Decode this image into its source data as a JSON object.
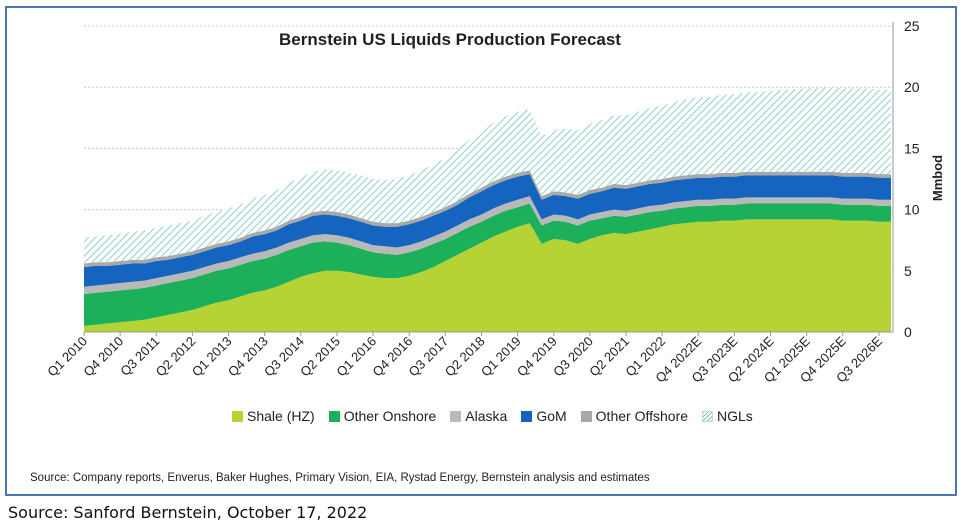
{
  "chart_data": {
    "type": "area",
    "title": "Bernstein US Liquids Production Forecast",
    "ylabel": "Mmbod",
    "xlabel": "",
    "ylim": [
      0,
      25
    ],
    "yticks": [
      0,
      5,
      10,
      15,
      20,
      25
    ],
    "stacked": true,
    "grid": "horizontal dashed",
    "legend_position": "bottom",
    "x_tick_labels": [
      "Q1 2010",
      "Q4 2010",
      "Q3 2011",
      "Q2 2012",
      "Q1 2013",
      "Q4 2013",
      "Q3 2014",
      "Q2 2015",
      "Q1 2016",
      "Q4 2016",
      "Q3 2017",
      "Q2 2018",
      "Q1 2019",
      "Q4 2019",
      "Q3 2020",
      "Q2 2021",
      "Q1 2022",
      "Q4 2022E",
      "Q3 2023E",
      "Q2 2024E",
      "Q1 2025E",
      "Q4 2025E",
      "Q3 2026E"
    ],
    "x_points": 68,
    "series": [
      {
        "name": "Shale (HZ)",
        "color": "#b5d334",
        "values": [
          0.5,
          0.6,
          0.7,
          0.8,
          0.9,
          1.0,
          1.2,
          1.4,
          1.6,
          1.8,
          2.1,
          2.4,
          2.6,
          2.9,
          3.2,
          3.4,
          3.7,
          4.1,
          4.5,
          4.8,
          5.0,
          5.0,
          4.9,
          4.7,
          4.5,
          4.4,
          4.4,
          4.6,
          4.9,
          5.3,
          5.8,
          6.3,
          6.8,
          7.3,
          7.8,
          8.2,
          8.6,
          8.9,
          7.2,
          7.6,
          7.5,
          7.2,
          7.6,
          7.9,
          8.1,
          8.0,
          8.2,
          8.4,
          8.6,
          8.8,
          8.9,
          9.0,
          9.0,
          9.1,
          9.1,
          9.2,
          9.2,
          9.2,
          9.2,
          9.2,
          9.2,
          9.2,
          9.2,
          9.1,
          9.1,
          9.1,
          9.0,
          9.0
        ]
      },
      {
        "name": "Other Onshore",
        "color": "#1db05a",
        "values": [
          2.6,
          2.6,
          2.6,
          2.6,
          2.6,
          2.6,
          2.6,
          2.6,
          2.6,
          2.6,
          2.6,
          2.6,
          2.6,
          2.6,
          2.6,
          2.6,
          2.6,
          2.6,
          2.5,
          2.5,
          2.4,
          2.3,
          2.2,
          2.1,
          2.0,
          2.0,
          1.9,
          1.9,
          1.9,
          1.9,
          1.8,
          1.8,
          1.8,
          1.7,
          1.7,
          1.7,
          1.6,
          1.6,
          1.5,
          1.5,
          1.5,
          1.5,
          1.5,
          1.4,
          1.4,
          1.4,
          1.4,
          1.4,
          1.3,
          1.3,
          1.3,
          1.3,
          1.3,
          1.3,
          1.3,
          1.3,
          1.3,
          1.3,
          1.3,
          1.3,
          1.3,
          1.3,
          1.3,
          1.3,
          1.3,
          1.3,
          1.3,
          1.3
        ]
      },
      {
        "name": "Alaska",
        "color": "#b9b9b9",
        "values": [
          0.6,
          0.6,
          0.6,
          0.6,
          0.6,
          0.6,
          0.6,
          0.6,
          0.6,
          0.6,
          0.6,
          0.6,
          0.6,
          0.6,
          0.6,
          0.6,
          0.6,
          0.6,
          0.6,
          0.6,
          0.6,
          0.6,
          0.6,
          0.6,
          0.6,
          0.6,
          0.6,
          0.6,
          0.6,
          0.6,
          0.6,
          0.6,
          0.6,
          0.6,
          0.6,
          0.6,
          0.6,
          0.6,
          0.5,
          0.5,
          0.5,
          0.5,
          0.5,
          0.5,
          0.5,
          0.5,
          0.5,
          0.5,
          0.5,
          0.5,
          0.5,
          0.5,
          0.5,
          0.5,
          0.5,
          0.5,
          0.5,
          0.5,
          0.5,
          0.5,
          0.5,
          0.5,
          0.5,
          0.5,
          0.5,
          0.5,
          0.5,
          0.5
        ]
      },
      {
        "name": "GoM",
        "color": "#1565c0",
        "values": [
          1.6,
          1.6,
          1.5,
          1.5,
          1.5,
          1.4,
          1.4,
          1.3,
          1.3,
          1.3,
          1.3,
          1.3,
          1.3,
          1.3,
          1.4,
          1.4,
          1.4,
          1.5,
          1.5,
          1.6,
          1.6,
          1.6,
          1.6,
          1.6,
          1.6,
          1.6,
          1.7,
          1.7,
          1.7,
          1.7,
          1.7,
          1.7,
          1.8,
          1.9,
          1.9,
          1.9,
          1.9,
          1.8,
          1.6,
          1.6,
          1.6,
          1.7,
          1.7,
          1.7,
          1.8,
          1.8,
          1.8,
          1.8,
          1.8,
          1.8,
          1.8,
          1.8,
          1.8,
          1.8,
          1.8,
          1.8,
          1.8,
          1.8,
          1.8,
          1.8,
          1.8,
          1.8,
          1.8,
          1.8,
          1.8,
          1.8,
          1.8,
          1.8
        ]
      },
      {
        "name": "Other Offshore",
        "color": "#a8a8a8",
        "values": [
          0.3,
          0.3,
          0.3,
          0.3,
          0.3,
          0.3,
          0.3,
          0.3,
          0.3,
          0.3,
          0.3,
          0.3,
          0.3,
          0.3,
          0.3,
          0.3,
          0.3,
          0.3,
          0.3,
          0.3,
          0.3,
          0.3,
          0.3,
          0.3,
          0.3,
          0.3,
          0.3,
          0.3,
          0.3,
          0.3,
          0.3,
          0.3,
          0.3,
          0.3,
          0.3,
          0.3,
          0.3,
          0.3,
          0.3,
          0.3,
          0.3,
          0.3,
          0.3,
          0.3,
          0.3,
          0.3,
          0.3,
          0.3,
          0.3,
          0.3,
          0.3,
          0.3,
          0.3,
          0.3,
          0.3,
          0.3,
          0.3,
          0.3,
          0.3,
          0.3,
          0.3,
          0.3,
          0.3,
          0.3,
          0.3,
          0.3,
          0.3,
          0.3
        ]
      },
      {
        "name": "NGLs",
        "color": "#8fd0c9",
        "pattern": "hatched",
        "values": [
          2.1,
          2.1,
          2.2,
          2.2,
          2.3,
          2.4,
          2.4,
          2.5,
          2.5,
          2.5,
          2.6,
          2.6,
          2.7,
          2.7,
          2.8,
          2.9,
          3.0,
          3.1,
          3.2,
          3.3,
          3.4,
          3.4,
          3.4,
          3.5,
          3.5,
          3.5,
          3.6,
          3.7,
          3.8,
          3.9,
          4.0,
          4.2,
          4.4,
          4.6,
          4.8,
          4.9,
          5.0,
          5.0,
          4.9,
          5.0,
          5.2,
          5.3,
          5.4,
          5.5,
          5.6,
          5.7,
          5.8,
          5.9,
          6.0,
          6.1,
          6.2,
          6.3,
          6.3,
          6.4,
          6.4,
          6.5,
          6.5,
          6.6,
          6.7,
          6.7,
          6.8,
          6.8,
          6.9,
          6.9,
          6.9,
          6.9,
          6.9,
          6.9
        ]
      }
    ]
  },
  "legend": {
    "items": [
      "Shale (HZ)",
      "Other Onshore",
      "Alaska",
      "GoM",
      "Other Offshore",
      "NGLs"
    ]
  },
  "source_note": "Source: Company reports, Enverus, Baker Hughes, Primary Vision, EIA, Rystad Energy, Bernstein analysis and estimates",
  "footer_note": "Source: Sanford Bernstein, October 17, 2022"
}
